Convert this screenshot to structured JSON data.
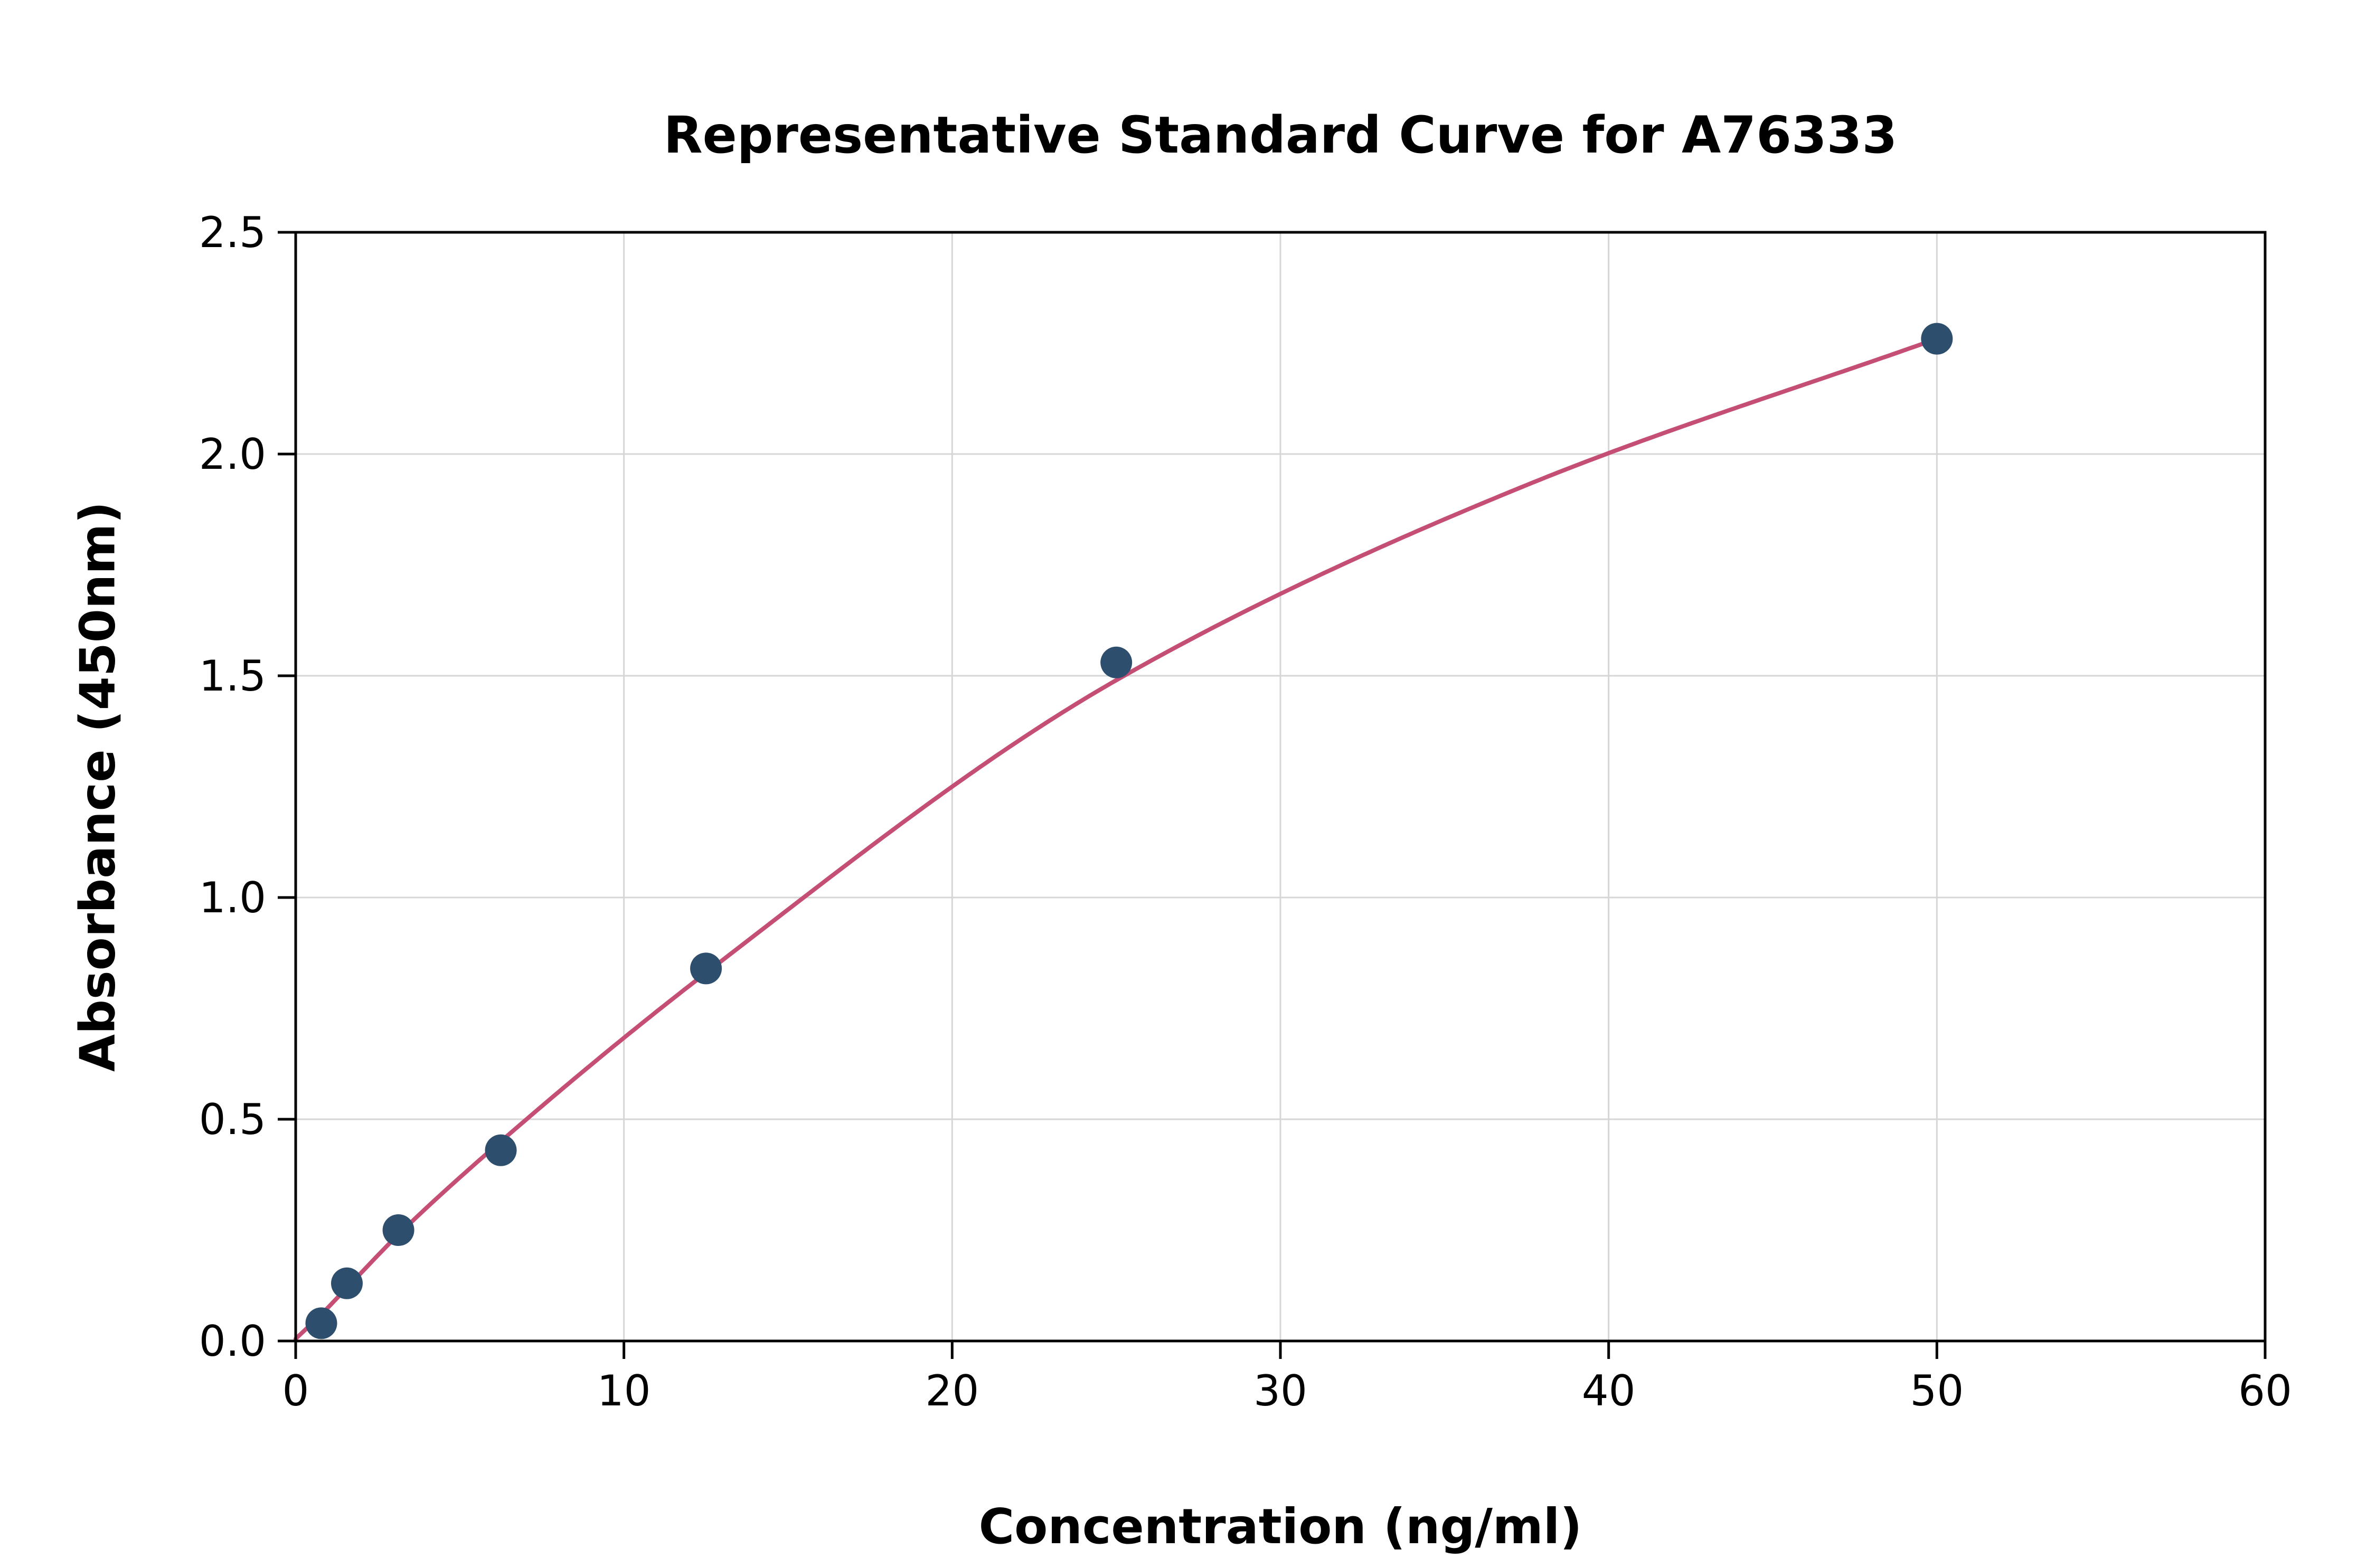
{
  "figure": {
    "title": "Representative Standard Curve for A76333",
    "xlabel": "Concentration (ng/ml)",
    "ylabel": "Absorbance (450nm)"
  },
  "chart_data": {
    "type": "scatter",
    "title": "Representative Standard Curve for A76333",
    "xlabel": "Concentration (ng/ml)",
    "ylabel": "Absorbance (450nm)",
    "xlim": [
      0,
      60
    ],
    "ylim": [
      0,
      2.5
    ],
    "xticks": [
      0,
      10,
      20,
      30,
      40,
      50,
      60
    ],
    "xtick_labels": [
      "0",
      "10",
      "20",
      "30",
      "40",
      "50",
      "60"
    ],
    "yticks": [
      0,
      0.5,
      1.0,
      1.5,
      2.0,
      2.5
    ],
    "ytick_labels": [
      "0.0",
      "0.5",
      "1.0",
      "1.5",
      "2.0",
      "2.5"
    ],
    "grid": true,
    "legend": false,
    "points": {
      "x": [
        0.78,
        1.56,
        3.13,
        6.25,
        12.5,
        25,
        50
      ],
      "y": [
        0.04,
        0.13,
        0.25,
        0.43,
        0.84,
        1.53,
        2.26
      ]
    },
    "fit_curve": {
      "x": [
        0,
        0.78,
        1.56,
        3.13,
        6.25,
        12.5,
        25,
        37.5,
        50
      ],
      "y": [
        0.005,
        0.06,
        0.12,
        0.24,
        0.45,
        0.83,
        1.49,
        1.93,
        2.26
      ]
    },
    "colors": {
      "point": "#2e4e6e",
      "curve": "#c44e74",
      "grid": "#d6d6d6",
      "axis": "#000000",
      "background": "#ffffff"
    }
  }
}
